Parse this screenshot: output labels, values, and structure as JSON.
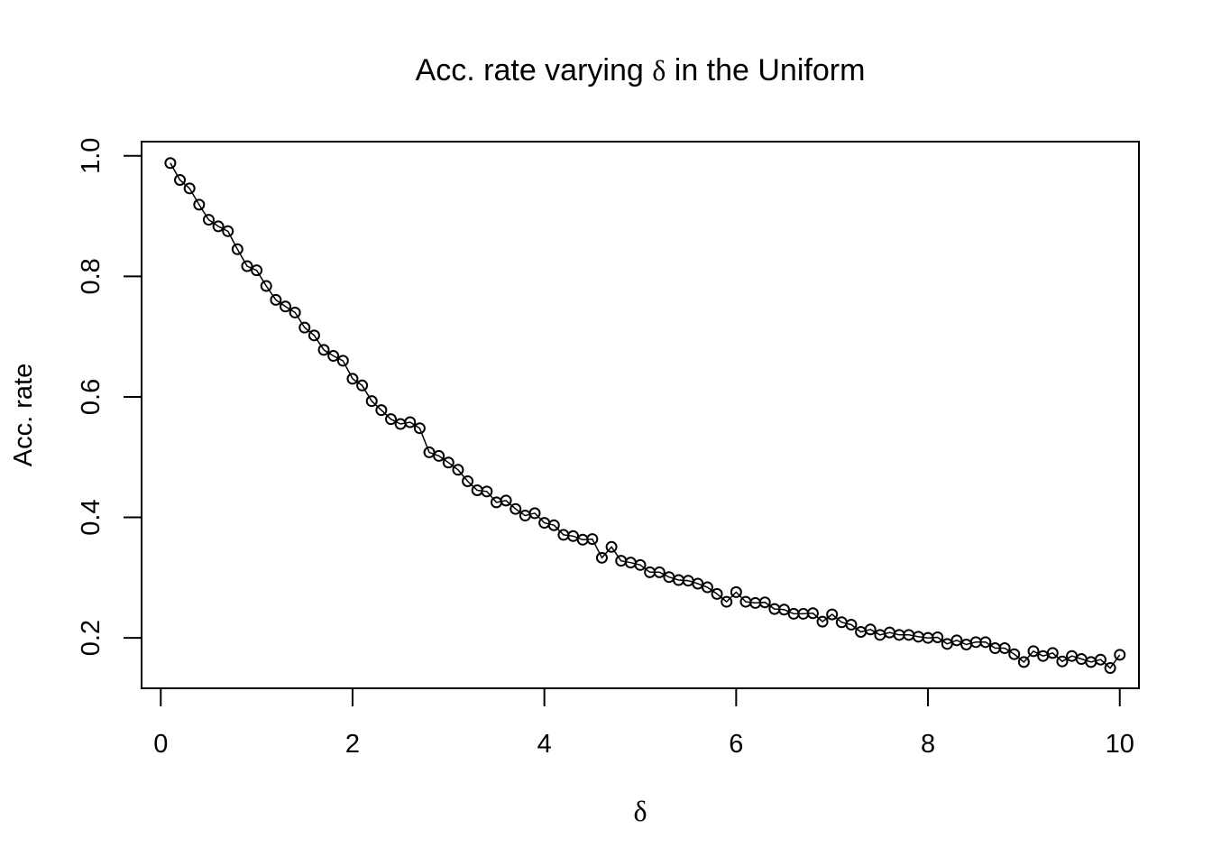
{
  "chart_data": {
    "type": "line",
    "title_prefix": "Acc. rate varying ",
    "title_symbol": "δ",
    "title_suffix": " in the Uniform",
    "xlabel": "δ",
    "ylabel": "Acc. rate",
    "xlim": [
      0,
      10
    ],
    "ylim": [
      0.15,
      0.99
    ],
    "xticks": [
      "0",
      "2",
      "4",
      "6",
      "8",
      "10"
    ],
    "yticks": [
      "0.2",
      "0.4",
      "0.6",
      "0.8",
      "1.0"
    ],
    "grid": false,
    "marker": "open-circle",
    "line_color": "#000000",
    "x": [
      0.1,
      0.2,
      0.3,
      0.4,
      0.5,
      0.6,
      0.7,
      0.8,
      0.9,
      1.0,
      1.1,
      1.2,
      1.3,
      1.4,
      1.5,
      1.6,
      1.7,
      1.8,
      1.9,
      2.0,
      2.1,
      2.2,
      2.3,
      2.4,
      2.5,
      2.6,
      2.7,
      2.8,
      2.9,
      3.0,
      3.1,
      3.2,
      3.3,
      3.4,
      3.5,
      3.6,
      3.7,
      3.8,
      3.9,
      4.0,
      4.1,
      4.2,
      4.3,
      4.4,
      4.5,
      4.6,
      4.7,
      4.8,
      4.9,
      5.0,
      5.1,
      5.2,
      5.3,
      5.4,
      5.5,
      5.6,
      5.7,
      5.8,
      5.9,
      6.0,
      6.1,
      6.2,
      6.3,
      6.4,
      6.5,
      6.6,
      6.7,
      6.8,
      6.9,
      7.0,
      7.1,
      7.2,
      7.3,
      7.4,
      7.5,
      7.6,
      7.7,
      7.8,
      7.9,
      8.0,
      8.1,
      8.2,
      8.3,
      8.4,
      8.5,
      8.6,
      8.7,
      8.8,
      8.9,
      9.0,
      9.1,
      9.2,
      9.3,
      9.4,
      9.5,
      9.6,
      9.7,
      9.8,
      9.9,
      10.0
    ],
    "y": [
      0.988,
      0.96,
      0.946,
      0.919,
      0.894,
      0.883,
      0.875,
      0.845,
      0.817,
      0.81,
      0.784,
      0.761,
      0.75,
      0.74,
      0.715,
      0.702,
      0.678,
      0.668,
      0.66,
      0.63,
      0.619,
      0.593,
      0.578,
      0.563,
      0.555,
      0.558,
      0.548,
      0.508,
      0.502,
      0.491,
      0.479,
      0.46,
      0.445,
      0.443,
      0.425,
      0.428,
      0.414,
      0.403,
      0.407,
      0.391,
      0.387,
      0.371,
      0.369,
      0.363,
      0.364,
      0.333,
      0.351,
      0.328,
      0.325,
      0.321,
      0.309,
      0.309,
      0.301,
      0.296,
      0.295,
      0.29,
      0.284,
      0.273,
      0.26,
      0.276,
      0.26,
      0.258,
      0.259,
      0.248,
      0.247,
      0.24,
      0.24,
      0.241,
      0.227,
      0.239,
      0.226,
      0.222,
      0.21,
      0.214,
      0.205,
      0.209,
      0.205,
      0.205,
      0.202,
      0.2,
      0.201,
      0.19,
      0.196,
      0.189,
      0.193,
      0.193,
      0.183,
      0.183,
      0.173,
      0.16,
      0.178,
      0.17,
      0.175,
      0.161,
      0.17,
      0.165,
      0.16,
      0.164,
      0.15,
      0.172
    ]
  }
}
